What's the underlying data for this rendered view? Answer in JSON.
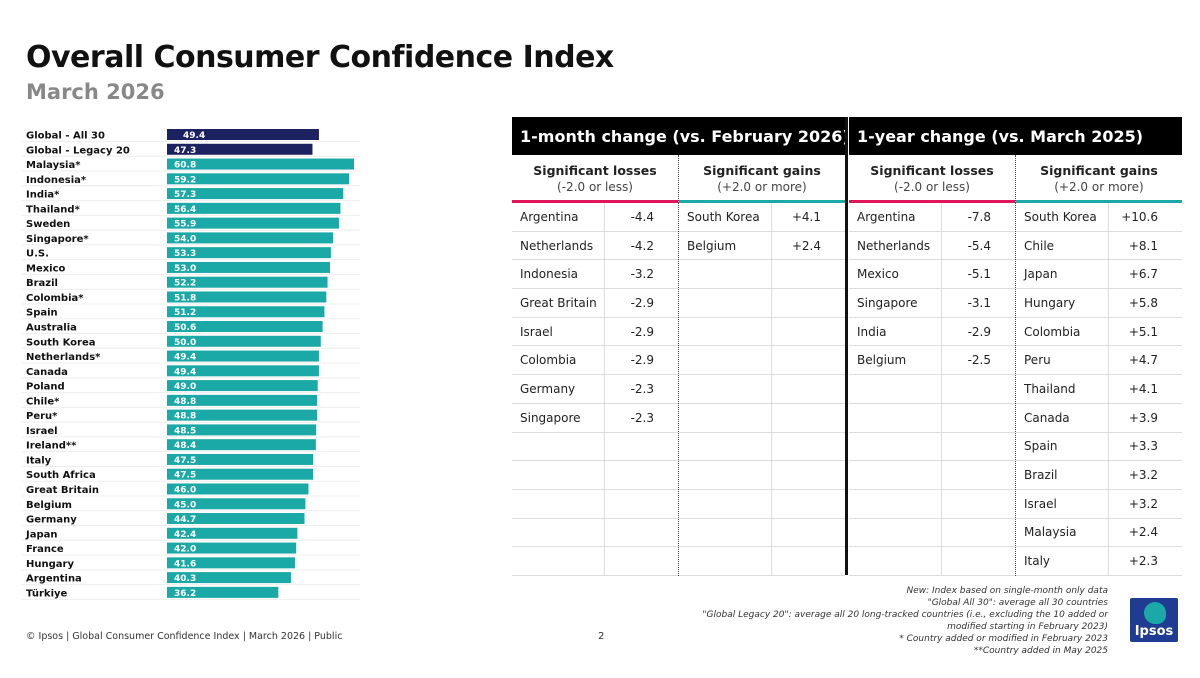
{
  "header": {
    "title": "Overall Consumer Confidence Index",
    "subtitle": "March 2026"
  },
  "colors": {
    "global_bar": "#1c2260",
    "country_bar": "#1aa9a7",
    "losses": "#e0165b",
    "gains": "#1aa9a7"
  },
  "chart_data": {
    "type": "bar",
    "orientation": "horizontal",
    "categories": [
      "Global - All 30",
      "Global - Legacy 20",
      "Malaysia*",
      "Indonesia*",
      "India*",
      "Thailand*",
      "Sweden",
      "Singapore*",
      "U.S.",
      "Mexico",
      "Brazil",
      "Colombia*",
      "Spain",
      "Australia",
      "South Korea",
      "Netherlands*",
      "Canada",
      "Poland",
      "Chile*",
      "Peru*",
      "Israel",
      "Ireland**",
      "Italy",
      "South Africa",
      "Great Britain",
      "Belgium",
      "Germany",
      "Japan",
      "France",
      "Hungary",
      "Argentina",
      "Türkiye"
    ],
    "values": [
      49.4,
      47.3,
      60.8,
      59.2,
      57.3,
      56.4,
      55.9,
      54.0,
      53.3,
      53.0,
      52.2,
      51.8,
      51.2,
      50.6,
      50.0,
      49.4,
      49.4,
      49.0,
      48.8,
      48.8,
      48.5,
      48.4,
      47.5,
      47.5,
      46.0,
      45.0,
      44.7,
      42.4,
      42.0,
      41.6,
      40.3,
      36.2
    ],
    "xlim": [
      0,
      61
    ],
    "grid": false,
    "data_labels": true
  },
  "tables": [
    {
      "title": "1-month change (vs. February 2026)",
      "losses_label": "Significant losses",
      "losses_note": "(-2.0 or less)",
      "gains_label": "Significant gains",
      "gains_note": "(+2.0 or more)",
      "losses": [
        [
          "Argentina",
          "-4.4"
        ],
        [
          "Netherlands",
          "-4.2"
        ],
        [
          "Indonesia",
          "-3.2"
        ],
        [
          "Great Britain",
          "-2.9"
        ],
        [
          "Israel",
          "-2.9"
        ],
        [
          "Colombia",
          "-2.9"
        ],
        [
          "Germany",
          "-2.3"
        ],
        [
          "Singapore",
          "-2.3"
        ]
      ],
      "gains": [
        [
          "South Korea",
          "+4.1"
        ],
        [
          "Belgium",
          "+2.4"
        ]
      ]
    },
    {
      "title": "1-year change (vs. March 2025)",
      "losses_label": "Significant losses",
      "losses_note": "(-2.0 or less)",
      "gains_label": "Significant gains",
      "gains_note": "(+2.0 or more)",
      "losses": [
        [
          "Argentina",
          "-7.8"
        ],
        [
          "Netherlands",
          "-5.4"
        ],
        [
          "Mexico",
          "-5.1"
        ],
        [
          "Singapore",
          "-3.1"
        ],
        [
          "India",
          "-2.9"
        ],
        [
          "Belgium",
          "-2.5"
        ]
      ],
      "gains": [
        [
          "South Korea",
          "+10.6"
        ],
        [
          "Chile",
          "+8.1"
        ],
        [
          "Japan",
          "+6.7"
        ],
        [
          "Hungary",
          "+5.8"
        ],
        [
          "Colombia",
          "+5.1"
        ],
        [
          "Peru",
          "+4.7"
        ],
        [
          "Thailand",
          "+4.1"
        ],
        [
          "Canada",
          "+3.9"
        ],
        [
          "Spain",
          "+3.3"
        ],
        [
          "Brazil",
          "+3.2"
        ],
        [
          "Israel",
          "+3.2"
        ],
        [
          "Malaysia",
          "+2.4"
        ],
        [
          "Italy",
          "+2.3"
        ]
      ]
    }
  ],
  "notes": [
    "New: Index based on single-month only data",
    "\"Global All 30\": average all 30 countries",
    "\"Global Legacy 20\": average all 20 long-tracked countries (i.e., excluding the 10 added or",
    "modified starting in February 2023)",
    "* Country added or modified in February 2023",
    "**Country added in May 2025"
  ],
  "footer": {
    "copyright": "© Ipsos | Global Consumer Confidence Index | March 2026 | Public",
    "page": "2",
    "logo": "Ipsos"
  }
}
